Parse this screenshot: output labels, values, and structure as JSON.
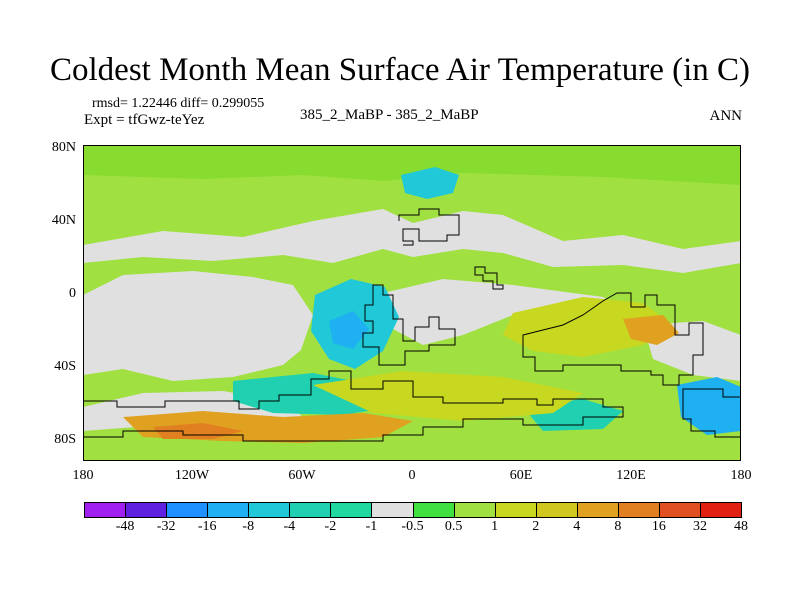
{
  "title": "Coldest Month Mean Surface Air Temperature (in C)",
  "stats": "rmsd= 1.22446 diff= 0.299055",
  "experiment": "Expt = tfGwz-teYez",
  "subtitle": "385_2_MaBP - 385_2_MaBP",
  "season": "ANN",
  "y_axis_labels": [
    "80N",
    "40N",
    "0",
    "40S",
    "80S"
  ],
  "x_axis_labels": [
    "180",
    "120W",
    "60W",
    "0",
    "60E",
    "120E",
    "180"
  ],
  "colorbar": {
    "colors": [
      "#a020f0",
      "#6020e0",
      "#1e90ff",
      "#1eb0f0",
      "#20c8d8",
      "#20d0b0",
      "#20d8a0",
      "#e0e0e0",
      "#40e040",
      "#a0e040",
      "#c8d820",
      "#d0c820",
      "#e0a020",
      "#e08020",
      "#e05020",
      "#e02010"
    ],
    "labels": [
      "-48",
      "-32",
      "-16",
      "-8",
      "-4",
      "-2",
      "-1",
      "-0.5",
      "0.5",
      "1",
      "2",
      "4",
      "8",
      "16",
      "32",
      "48"
    ]
  },
  "map_colors": {
    "background": "#a0e040",
    "neutral": "#e0e0e0",
    "light_green": "#88dc30",
    "cyan": "#20c8d8",
    "teal": "#20d0b0",
    "blue": "#1eb0f0",
    "yellow": "#c8d820",
    "orange": "#e0a020",
    "dark_orange": "#e08020"
  }
}
